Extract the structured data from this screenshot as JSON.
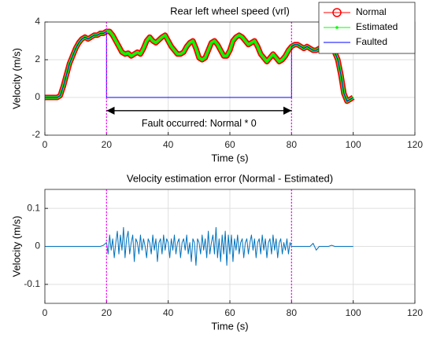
{
  "chart_data": [
    {
      "type": "line",
      "title": "Rear left wheel speed (vrl)",
      "xlabel": "Time (s)",
      "ylabel": "Velocity (m/s)",
      "x": [
        0,
        1,
        2,
        3,
        4,
        5,
        6,
        7,
        8,
        9,
        10,
        11,
        12,
        13,
        14,
        15,
        16,
        17,
        18,
        19,
        20,
        21,
        22,
        23,
        24,
        25,
        26,
        27,
        28,
        29,
        30,
        31,
        32,
        33,
        34,
        35,
        36,
        37,
        38,
        39,
        40,
        41,
        42,
        43,
        44,
        45,
        46,
        47,
        48,
        49,
        50,
        51,
        52,
        53,
        54,
        55,
        56,
        57,
        58,
        59,
        60,
        61,
        62,
        63,
        64,
        65,
        66,
        67,
        68,
        69,
        70,
        71,
        72,
        73,
        74,
        75,
        76,
        77,
        78,
        79,
        80,
        81,
        82,
        83,
        84,
        85,
        86,
        87,
        88,
        89,
        90,
        91,
        92,
        93,
        94,
        95,
        96,
        97,
        98,
        99,
        100
      ],
      "series": [
        {
          "name": "Normal",
          "color": "#ff0000",
          "marker": "circle",
          "values": [
            0,
            0,
            0,
            0,
            0,
            0.1,
            0.6,
            1.2,
            1.8,
            2.2,
            2.6,
            2.9,
            3.1,
            3.2,
            3.1,
            3.2,
            3.3,
            3.3,
            3.4,
            3.4,
            3.5,
            3.5,
            3.3,
            3.0,
            2.7,
            2.4,
            2.3,
            2.35,
            2.2,
            2.3,
            2.4,
            2.3,
            2.6,
            3.0,
            3.2,
            3.0,
            2.9,
            3.05,
            3.2,
            3.3,
            3.0,
            2.7,
            2.5,
            2.3,
            2.3,
            2.4,
            2.7,
            2.9,
            3.0,
            2.6,
            2.1,
            2.0,
            2.1,
            2.5,
            2.9,
            3.0,
            2.8,
            2.5,
            2.2,
            2.2,
            2.5,
            3.0,
            3.2,
            3.3,
            3.2,
            3.0,
            2.8,
            2.9,
            3.0,
            2.7,
            2.3,
            2.1,
            1.9,
            2.1,
            2.3,
            2.1,
            1.9,
            2.0,
            2.2,
            2.5,
            2.7,
            2.8,
            2.8,
            2.7,
            2.6,
            2.7,
            2.6,
            2.5,
            2.5,
            2.6,
            2.6,
            2.5,
            2.6,
            2.6,
            2.4,
            2.0,
            1.2,
            0.2,
            -0.2,
            -0.1,
            0
          ]
        },
        {
          "name": "Estimated",
          "color": "#00ff00",
          "marker": "dot",
          "values": [
            0,
            0,
            0,
            0,
            0,
            0.1,
            0.6,
            1.2,
            1.8,
            2.2,
            2.6,
            2.9,
            3.1,
            3.2,
            3.1,
            3.2,
            3.3,
            3.3,
            3.4,
            3.4,
            3.5,
            3.5,
            3.3,
            3.0,
            2.7,
            2.4,
            2.3,
            2.35,
            2.2,
            2.3,
            2.4,
            2.3,
            2.6,
            3.0,
            3.2,
            3.0,
            2.9,
            3.05,
            3.2,
            3.3,
            3.0,
            2.7,
            2.5,
            2.3,
            2.3,
            2.4,
            2.7,
            2.9,
            3.0,
            2.6,
            2.1,
            2.0,
            2.1,
            2.5,
            2.9,
            3.0,
            2.8,
            2.5,
            2.2,
            2.2,
            2.5,
            3.0,
            3.2,
            3.3,
            3.2,
            3.0,
            2.8,
            2.9,
            3.0,
            2.7,
            2.3,
            2.1,
            1.9,
            2.1,
            2.3,
            2.1,
            1.9,
            2.0,
            2.2,
            2.5,
            2.7,
            2.8,
            2.8,
            2.7,
            2.6,
            2.7,
            2.6,
            2.5,
            2.5,
            2.6,
            2.6,
            2.5,
            2.6,
            2.6,
            2.4,
            2.0,
            1.2,
            0.2,
            -0.2,
            -0.1,
            0
          ]
        },
        {
          "name": "Faulted",
          "color": "#0000ff",
          "marker": "none",
          "x": [
            0,
            1,
            2,
            3,
            4,
            5,
            6,
            7,
            8,
            9,
            10,
            11,
            12,
            13,
            14,
            15,
            16,
            17,
            18,
            19,
            20,
            20,
            80,
            80,
            81,
            82,
            83,
            84,
            85,
            86,
            87,
            88,
            89,
            90,
            91,
            92,
            93,
            94,
            95,
            96,
            97,
            98,
            99,
            100
          ],
          "values": [
            0,
            0,
            0,
            0,
            0,
            0.1,
            0.6,
            1.2,
            1.8,
            2.2,
            2.6,
            2.9,
            3.1,
            3.2,
            3.1,
            3.2,
            3.3,
            3.3,
            3.4,
            3.4,
            3.5,
            0,
            0,
            2.7,
            2.8,
            2.8,
            2.7,
            2.6,
            2.7,
            2.6,
            2.5,
            2.5,
            2.6,
            2.6,
            2.5,
            2.6,
            2.6,
            2.4,
            2.0,
            1.2,
            0.2,
            -0.2,
            -0.1,
            0
          ]
        }
      ],
      "xlim": [
        0,
        120
      ],
      "xticks": [
        0,
        20,
        40,
        60,
        80,
        100,
        120
      ],
      "ylim": [
        -2,
        4
      ],
      "yticks": [
        -2,
        0,
        2,
        4
      ],
      "grid": true,
      "legend": "upper right",
      "vlines": [
        20,
        80
      ],
      "arrow": {
        "x": [
          20,
          80
        ],
        "y": -0.7
      },
      "annotations": [
        {
          "text": "Fault occurred: Normal * 0",
          "x": 50,
          "y": -1.4
        }
      ]
    },
    {
      "type": "line",
      "title": "Velocity estimation error (Normal - Estimated)",
      "xlabel": "Time (s)",
      "ylabel": "Velocity (m/s)",
      "x": [
        0,
        1,
        2,
        3,
        4,
        5,
        6,
        7,
        8,
        9,
        10,
        11,
        12,
        13,
        14,
        15,
        16,
        17,
        18,
        19,
        20,
        20.5,
        21,
        21.5,
        22,
        22.5,
        23,
        23.5,
        24,
        24.5,
        25,
        25.5,
        26,
        26.5,
        27,
        27.5,
        28,
        28.5,
        29,
        29.5,
        30,
        30.5,
        31,
        31.5,
        32,
        32.5,
        33,
        33.5,
        34,
        34.5,
        35,
        35.5,
        36,
        36.5,
        37,
        37.5,
        38,
        38.5,
        39,
        39.5,
        40,
        40.5,
        41,
        41.5,
        42,
        42.5,
        43,
        43.5,
        44,
        44.5,
        45,
        45.5,
        46,
        46.5,
        47,
        47.5,
        48,
        48.5,
        49,
        49.5,
        50,
        50.5,
        51,
        51.5,
        52,
        52.5,
        53,
        53.5,
        54,
        54.5,
        55,
        55.5,
        56,
        56.5,
        57,
        57.5,
        58,
        58.5,
        59,
        59.5,
        60,
        60.5,
        61,
        61.5,
        62,
        62.5,
        63,
        63.5,
        64,
        64.5,
        65,
        65.5,
        66,
        66.5,
        67,
        67.5,
        68,
        68.5,
        69,
        69.5,
        70,
        70.5,
        71,
        71.5,
        72,
        72.5,
        73,
        73.5,
        74,
        74.5,
        75,
        75.5,
        76,
        76.5,
        77,
        77.5,
        78,
        78.5,
        79,
        79.5,
        80,
        81,
        82,
        83,
        84,
        85,
        86,
        87,
        88,
        89,
        90,
        91,
        92,
        93,
        94,
        95,
        96,
        97,
        98,
        99,
        100
      ],
      "series": [
        {
          "color": "#0072bd",
          "values": [
            0,
            0,
            0,
            0,
            0,
            0,
            0,
            0,
            0,
            0,
            0,
            0,
            0,
            0,
            0,
            0,
            0,
            0,
            0,
            0.003,
            0.01,
            -0.02,
            0.03,
            -0.01,
            0.02,
            -0.03,
            0.01,
            0.04,
            -0.02,
            0.03,
            -0.01,
            0.05,
            -0.03,
            0.02,
            0.04,
            -0.02,
            0.01,
            0.03,
            -0.04,
            0.02,
            0.01,
            -0.02,
            0.03,
            -0.01,
            0.02,
            0,
            -0.03,
            0.02,
            0.01,
            -0.02,
            0.03,
            -0.01,
            0.02,
            -0.04,
            0.01,
            0.02,
            -0.02,
            0.03,
            -0.01,
            0.02,
            0.01,
            -0.03,
            0.02,
            -0.01,
            0.03,
            -0.02,
            0.01,
            0.02,
            -0.03,
            0.01,
            0.02,
            -0.01,
            0.03,
            -0.02,
            0.01,
            -0.04,
            0.02,
            0.01,
            -0.05,
            0.02,
            0.01,
            -0.02,
            0.03,
            -0.01,
            0.02,
            -0.03,
            0.04,
            -0.02,
            0.01,
            0.03,
            -0.02,
            0.05,
            -0.03,
            0.02,
            -0.04,
            0.03,
            -0.02,
            0.04,
            -0.05,
            0.03,
            -0.02,
            0.03,
            -0.04,
            0.02,
            -0.01,
            0.03,
            -0.02,
            0.01,
            0.02,
            -0.03,
            0.01,
            0.02,
            -0.02,
            0.01,
            0.03,
            -0.01,
            0.02,
            -0.03,
            0.01,
            0.02,
            -0.02,
            0.03,
            -0.01,
            0.02,
            -0.03,
            0.01,
            0.02,
            -0.02,
            0.03,
            -0.01,
            0.02,
            -0.03,
            0.01,
            0.02,
            -0.02,
            0.01,
            -0.01,
            0.02,
            -0.02,
            0.01,
            0,
            0,
            0,
            0,
            0,
            0,
            0,
            0.008,
            -0.01,
            0,
            0,
            0,
            0,
            0.003,
            0,
            0,
            0,
            0,
            0,
            0,
            0
          ]
        }
      ],
      "xlim": [
        0,
        120
      ],
      "xticks": [
        0,
        20,
        40,
        60,
        80,
        100,
        120
      ],
      "ylim": [
        -0.15,
        0.15
      ],
      "yticks": [
        -0.1,
        0,
        0.1
      ],
      "grid": true,
      "vlines": [
        20,
        80
      ]
    }
  ]
}
